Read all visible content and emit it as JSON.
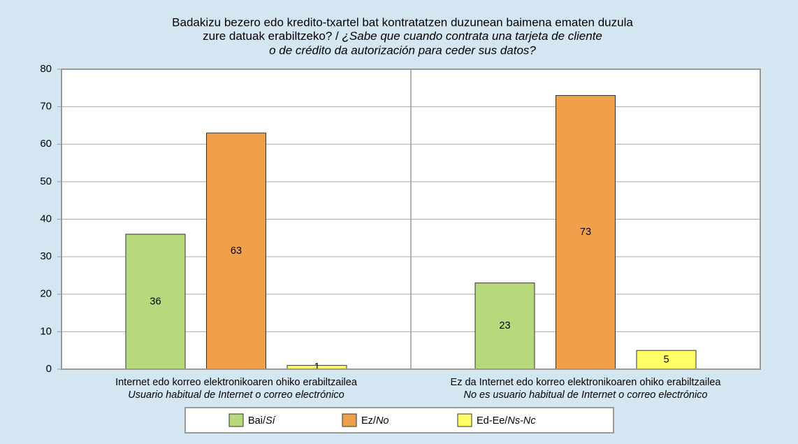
{
  "chart_data": {
    "type": "bar",
    "title": [
      "Badakizu bezero edo kredito-txartel bat kontratatzen duzunean baimena ematen duzula",
      "zure datuak erabiltzeko? / ",
      "¿Sabe que cuando contrata una tarjeta de cliente",
      "o de crédito da autorización para ceder sus datos?"
    ],
    "categories": [
      [
        "Internet edo korreo elektronikoaren ohiko erabiltzailea",
        "Usuario habitual de Internet o correo electrónico"
      ],
      [
        "Ez da Internet edo korreo elektronikoaren ohiko erabiltzailea",
        "No es usuario habitual de Internet o correo electrónico"
      ]
    ],
    "series": [
      {
        "name": [
          "Bai/",
          "Sí"
        ],
        "color": "#b7d97c",
        "values": [
          36,
          23
        ]
      },
      {
        "name": [
          "Ez/",
          "No"
        ],
        "color": "#f0a04b",
        "values": [
          63,
          73
        ]
      },
      {
        "name": [
          "Ed-Ee/",
          "Ns-Nc"
        ],
        "color": "#ffff66",
        "values": [
          1,
          5
        ]
      }
    ],
    "ylim": [
      0,
      80
    ],
    "yticks": [
      0,
      10,
      20,
      30,
      40,
      50,
      60,
      70,
      80
    ],
    "grid": true,
    "legend": "bottom"
  }
}
